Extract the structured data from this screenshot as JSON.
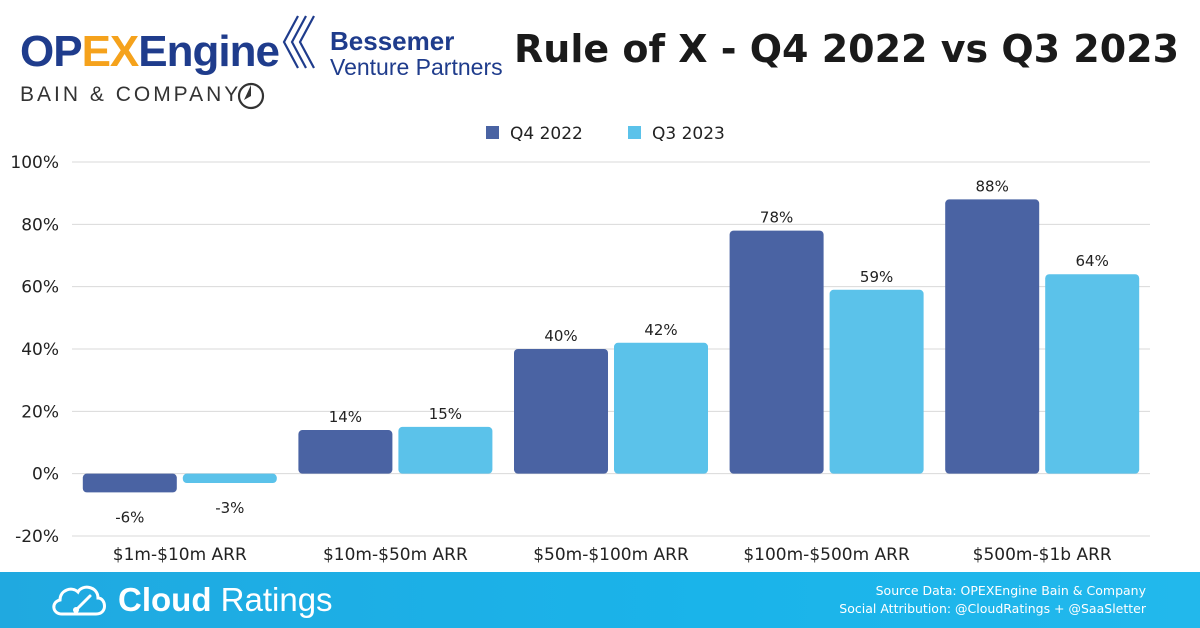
{
  "header": {
    "logo_opex_1": "OP",
    "logo_opex_2": "EX",
    "logo_opex_3": "Engine",
    "logo_bain": "BAIN & COMPANY",
    "logo_bvp_line1": "Bessemer",
    "logo_bvp_line2": "Venture Partners",
    "title": "Rule of X - Q4 2022 vs Q3 2023"
  },
  "footer": {
    "brand_bold": "Cloud",
    "brand_light": " Ratings",
    "source": "Source Data: OPEXEngine Bain & Company",
    "attribution": "Social Attribution: @CloudRatings + @SaaSletter"
  },
  "colors": {
    "q4_2022": "#4a63a3",
    "q3_2023": "#5bc2ea",
    "grid": "#d9d9d9"
  },
  "chart_data": {
    "type": "bar",
    "title": "Rule of X - Q4 2022 vs Q3 2023",
    "categories": [
      "$1m-$10m ARR",
      "$10m-$50m ARR",
      "$50m-$100m ARR",
      "$100m-$500m ARR",
      "$500m-$1b ARR"
    ],
    "series": [
      {
        "name": "Q4 2022",
        "values": [
          -6,
          14,
          40,
          78,
          88
        ],
        "labels": [
          "-6%",
          "14%",
          "40%",
          "78%",
          "88%"
        ]
      },
      {
        "name": "Q3 2023",
        "values": [
          -3,
          15,
          42,
          59,
          64
        ],
        "labels": [
          "-3%",
          "15%",
          "42%",
          "59%",
          "64%"
        ]
      }
    ],
    "ylim": [
      -20,
      100
    ],
    "yticks": [
      100,
      80,
      60,
      40,
      20,
      0,
      -20
    ],
    "ytick_labels": [
      "100%",
      "80%",
      "60%",
      "40%",
      "20%",
      "0%",
      "-20%"
    ],
    "legend_position": "top-center",
    "grid": true,
    "xlabel": "",
    "ylabel": ""
  }
}
